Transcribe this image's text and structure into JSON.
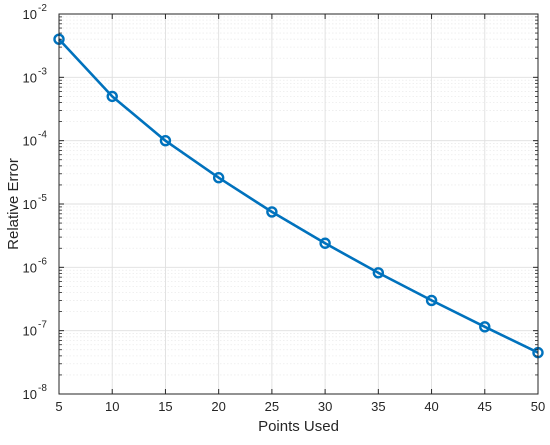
{
  "chart_data": {
    "type": "line",
    "title": "",
    "xlabel": "Points Used",
    "ylabel": "Relative Error",
    "x_scale": "linear",
    "y_scale": "log",
    "xlim": [
      5,
      50
    ],
    "ylim": [
      1e-08,
      0.01
    ],
    "grid": true,
    "minor_grid": true,
    "legend": "none",
    "x_ticks": [
      5,
      10,
      15,
      20,
      25,
      30,
      35,
      40,
      45,
      50
    ],
    "x_tick_labels": [
      "5",
      "10",
      "15",
      "20",
      "25",
      "30",
      "35",
      "40",
      "45",
      "50"
    ],
    "y_ticks": [
      {
        "value": 1e-08,
        "base": "10",
        "exp": "-8"
      },
      {
        "value": 1e-07,
        "base": "10",
        "exp": "-7"
      },
      {
        "value": 1e-06,
        "base": "10",
        "exp": "-6"
      },
      {
        "value": 1e-05,
        "base": "10",
        "exp": "-5"
      },
      {
        "value": 0.0001,
        "base": "10",
        "exp": "-4"
      },
      {
        "value": 0.001,
        "base": "10",
        "exp": "-3"
      },
      {
        "value": 0.01,
        "base": "10",
        "exp": "-2"
      }
    ],
    "series": [
      {
        "color": "#0072BD",
        "marker": "circle",
        "x": [
          5,
          10,
          15,
          20,
          25,
          30,
          35,
          40,
          45,
          50
        ],
        "y": [
          0.004,
          0.0005,
          0.0001,
          2.6e-05,
          7.5e-06,
          2.4e-06,
          8.2e-07,
          3e-07,
          1.15e-07,
          4.5e-08
        ]
      }
    ],
    "colors": {
      "axis": "#262626",
      "grid": "#dfdfdf",
      "minor_grid": "#ececec",
      "background": "#ffffff"
    }
  }
}
